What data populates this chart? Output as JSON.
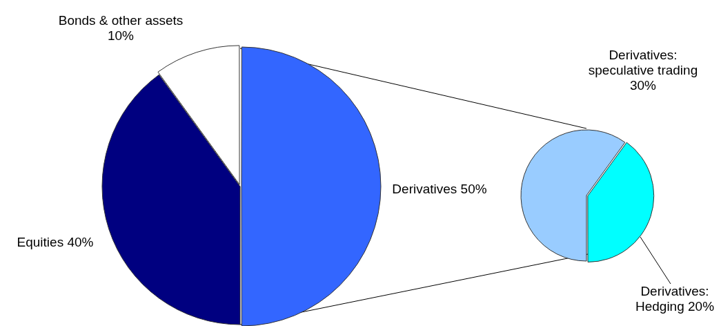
{
  "chart_data": [
    {
      "type": "pie",
      "categories": [
        "Derivatives",
        "Equities",
        "Bonds & other assets"
      ],
      "values": [
        50,
        40,
        10
      ],
      "value_labels": [
        "50%",
        "40%",
        "10%"
      ],
      "colors": [
        "#3366ff",
        "#000080",
        "#ffffff"
      ],
      "legend": false
    },
    {
      "type": "pie",
      "categories": [
        "Derivatives: speculative trading",
        "Derivatives: Hedging"
      ],
      "values": [
        30,
        20
      ],
      "value_labels": [
        "30%",
        "20%"
      ],
      "colors": [
        "#99ccff",
        "#00ffff"
      ],
      "legend": false
    }
  ]
}
